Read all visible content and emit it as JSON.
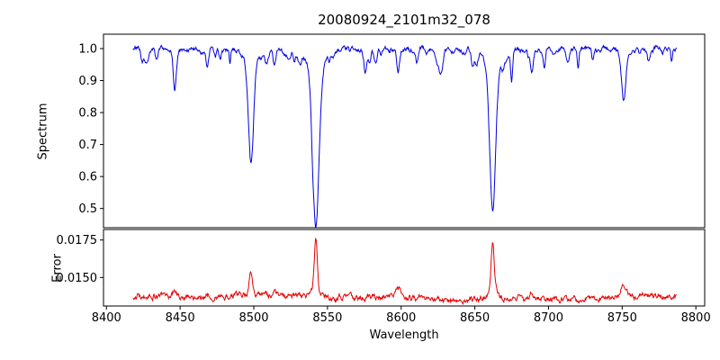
{
  "chart_data": [
    {
      "type": "line",
      "panel": "spectrum",
      "title": "20080924_2101m32_078",
      "ylabel": "Spectrum",
      "line_color": "#0000e0",
      "x_range": [
        8418,
        8787
      ],
      "xlim": [
        8398,
        8806
      ],
      "ylim": [
        0.44,
        1.045
      ],
      "yticks": [
        0.5,
        0.6,
        0.7,
        0.8,
        0.9,
        1.0
      ],
      "ytick_labels": [
        "0.5",
        "0.6",
        "0.7",
        "0.8",
        "0.9",
        "1.0"
      ],
      "continuum": 1.0,
      "grid": false,
      "legend": "none",
      "absorption_lines": [
        {
          "center": 8424.2,
          "depth": 0.04,
          "width": 0.9
        },
        {
          "center": 8434.0,
          "depth": 0.035,
          "width": 0.8
        },
        {
          "center": 8446.4,
          "depth": 0.13,
          "width": 1.0
        },
        {
          "center": 8468.5,
          "depth": 0.05,
          "width": 0.9
        },
        {
          "center": 8498.0,
          "depth": 0.355,
          "width": 1.7
        },
        {
          "center": 8514.1,
          "depth": 0.05,
          "width": 0.8
        },
        {
          "center": 8542.1,
          "depth": 0.555,
          "width": 2.1
        },
        {
          "center": 8582.3,
          "depth": 0.04,
          "width": 0.9
        },
        {
          "center": 8598.0,
          "depth": 0.075,
          "width": 1.0
        },
        {
          "center": 8611.0,
          "depth": 0.035,
          "width": 0.8
        },
        {
          "center": 8648.5,
          "depth": 0.04,
          "width": 0.9
        },
        {
          "center": 8662.1,
          "depth": 0.505,
          "width": 2.0
        },
        {
          "center": 8674.8,
          "depth": 0.05,
          "width": 0.8
        },
        {
          "center": 8688.6,
          "depth": 0.055,
          "width": 0.9
        },
        {
          "center": 8713.2,
          "depth": 0.04,
          "width": 0.9
        },
        {
          "center": 8730.0,
          "depth": 0.035,
          "width": 0.8
        },
        {
          "center": 8751.0,
          "depth": 0.165,
          "width": 1.4
        },
        {
          "center": 8768.0,
          "depth": 0.045,
          "width": 0.9
        }
      ],
      "noise": {
        "seed": 1234567,
        "amplitude": 0.011,
        "smoothing": 0.72,
        "micro_lines": 80,
        "micro_depth_max": 0.045
      }
    },
    {
      "type": "line",
      "panel": "error",
      "ylabel": "Error",
      "xlabel": "Wavelength",
      "line_color": "#e60000",
      "x_range": [
        8418,
        8787
      ],
      "xlim": [
        8398,
        8806
      ],
      "ylim": [
        0.0131,
        0.0182
      ],
      "yticks": [
        0.015,
        0.0175
      ],
      "ytick_labels": [
        "0.0150",
        "0.0175"
      ],
      "xticks": [
        8400,
        8450,
        8500,
        8550,
        8600,
        8650,
        8700,
        8750,
        8800
      ],
      "xtick_labels": [
        "8400",
        "8450",
        "8500",
        "8550",
        "8600",
        "8650",
        "8700",
        "8750",
        "8800"
      ],
      "baseline": 0.01365,
      "grid": false,
      "legend": "none",
      "error_peaks": [
        {
          "center": 8446.4,
          "height": 0.00055,
          "width": 0.9
        },
        {
          "center": 8468.5,
          "height": 0.00025,
          "width": 0.8
        },
        {
          "center": 8498.0,
          "height": 0.00175,
          "width": 0.9
        },
        {
          "center": 8514.1,
          "height": 0.0004,
          "width": 0.8
        },
        {
          "center": 8542.1,
          "height": 0.004,
          "width": 1.0
        },
        {
          "center": 8598.0,
          "height": 0.0005,
          "width": 1.6
        },
        {
          "center": 8662.1,
          "height": 0.0039,
          "width": 1.0
        },
        {
          "center": 8688.6,
          "height": 0.0003,
          "width": 0.9
        },
        {
          "center": 8751.0,
          "height": 0.0007,
          "width": 1.6
        }
      ],
      "noise": {
        "seed": 424242,
        "amplitude": 0.0003,
        "smoothing": 0.7
      }
    }
  ]
}
